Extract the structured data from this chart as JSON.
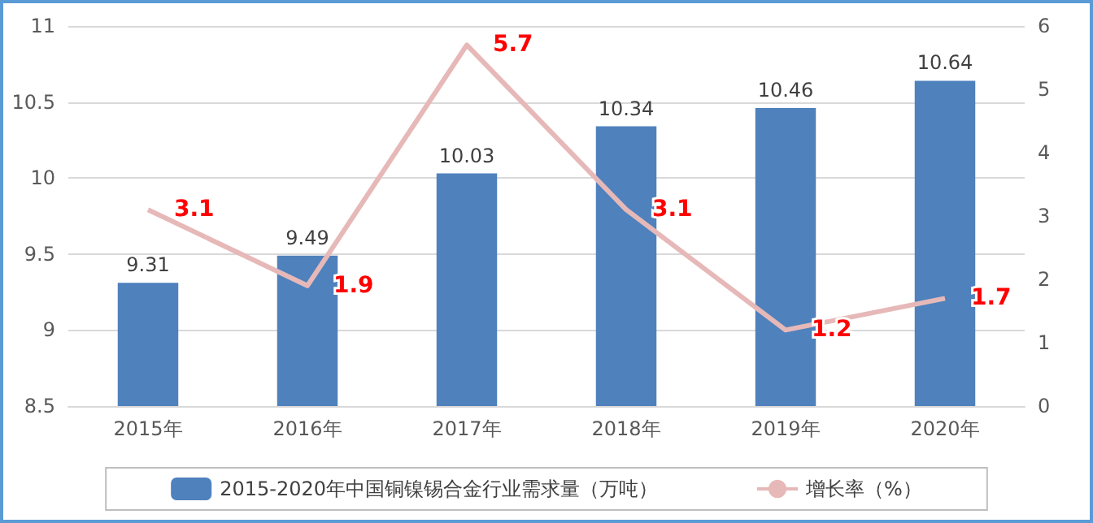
{
  "chart_data": {
    "type": "bar",
    "categories": [
      "2015年",
      "2016年",
      "2017年",
      "2018年",
      "2019年",
      "2020年"
    ],
    "series": [
      {
        "name": "2015-2020年中国铜镍锡合金行业需求量（万吨）",
        "color": "#4f81bd",
        "values": [
          9.31,
          9.49,
          10.03,
          10.34,
          10.46,
          10.64
        ]
      },
      {
        "name": "增长率（%）",
        "type": "line",
        "axis": "y2",
        "color": "#e6b9b8",
        "values": [
          3.1,
          1.9,
          5.7,
          3.1,
          1.2,
          1.7
        ]
      }
    ],
    "data_labels": true,
    "ylim": [
      8.5,
      11
    ],
    "yticks": [
      8.5,
      9,
      9.5,
      10,
      10.5,
      11
    ],
    "y2lim": [
      0,
      6
    ],
    "y2ticks": [
      0,
      1,
      2,
      3,
      4,
      5,
      6
    ],
    "grid": "y",
    "legend": "bottom",
    "marker": "none"
  }
}
